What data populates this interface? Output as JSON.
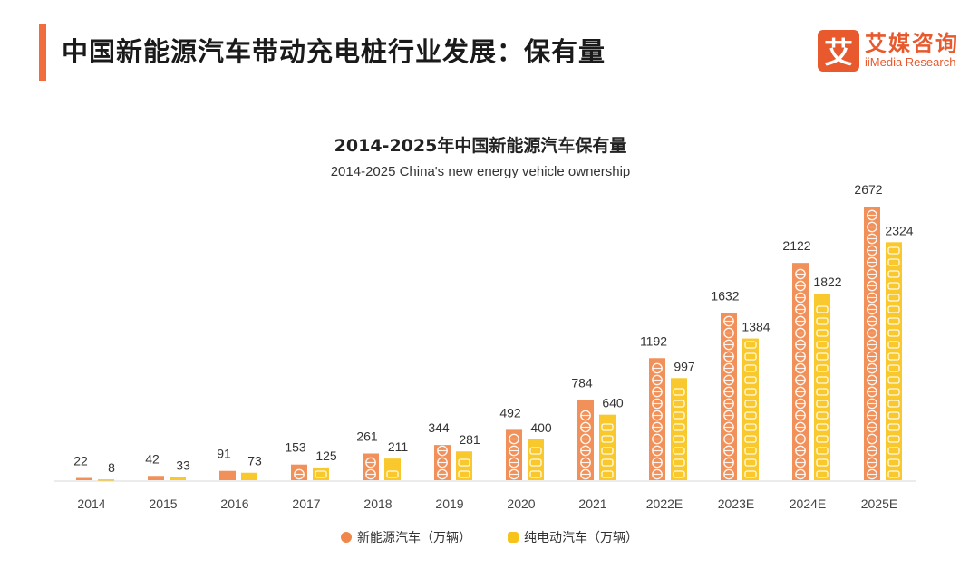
{
  "page": {
    "title": "中国新能源汽车带动充电桩行业发展：保有量"
  },
  "logo": {
    "mark": "艾",
    "name_cn": "艾媒咨询",
    "name_en": "iiMedia Research"
  },
  "colors": {
    "accent": "#f26d3d",
    "nev": "#f0874a",
    "bev": "#f7c31b"
  },
  "chart_data": {
    "type": "bar",
    "title": "2014-2025年中国新能源汽车保有量",
    "subtitle": "2014-2025 China's new energy vehicle ownership",
    "categories": [
      "2014",
      "2015",
      "2016",
      "2017",
      "2018",
      "2019",
      "2020",
      "2021",
      "2022E",
      "2023E",
      "2024E",
      "2025E"
    ],
    "series": [
      {
        "name": "新能源汽车（万辆）",
        "values": [
          22,
          42,
          91,
          153,
          261,
          344,
          492,
          784,
          1192,
          1632,
          2122,
          2672
        ]
      },
      {
        "name": "纯电动汽车（万辆）",
        "values": [
          8,
          33,
          73,
          125,
          211,
          281,
          400,
          640,
          997,
          1384,
          1822,
          2324
        ]
      }
    ],
    "ylim": [
      0,
      2672
    ],
    "xlabel": "",
    "ylabel": "",
    "legend": "bottom"
  }
}
